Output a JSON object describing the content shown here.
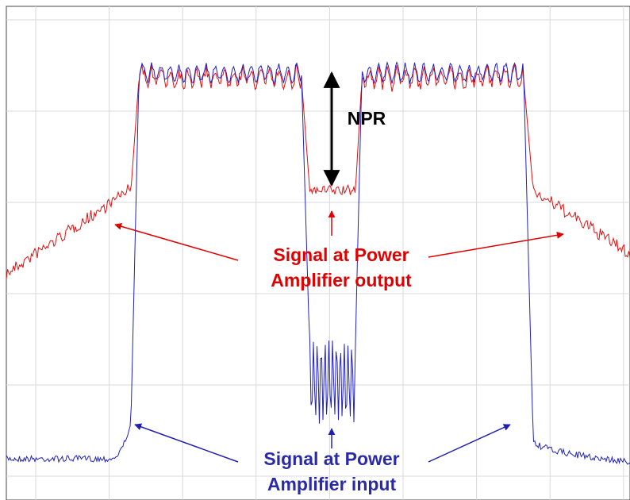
{
  "annotations": {
    "npr": "NPR",
    "output_line1": "Signal at Power",
    "output_line2": "Amplifier output",
    "input_line1": "Signal at Power",
    "input_line2": "Amplifier input"
  }
}
